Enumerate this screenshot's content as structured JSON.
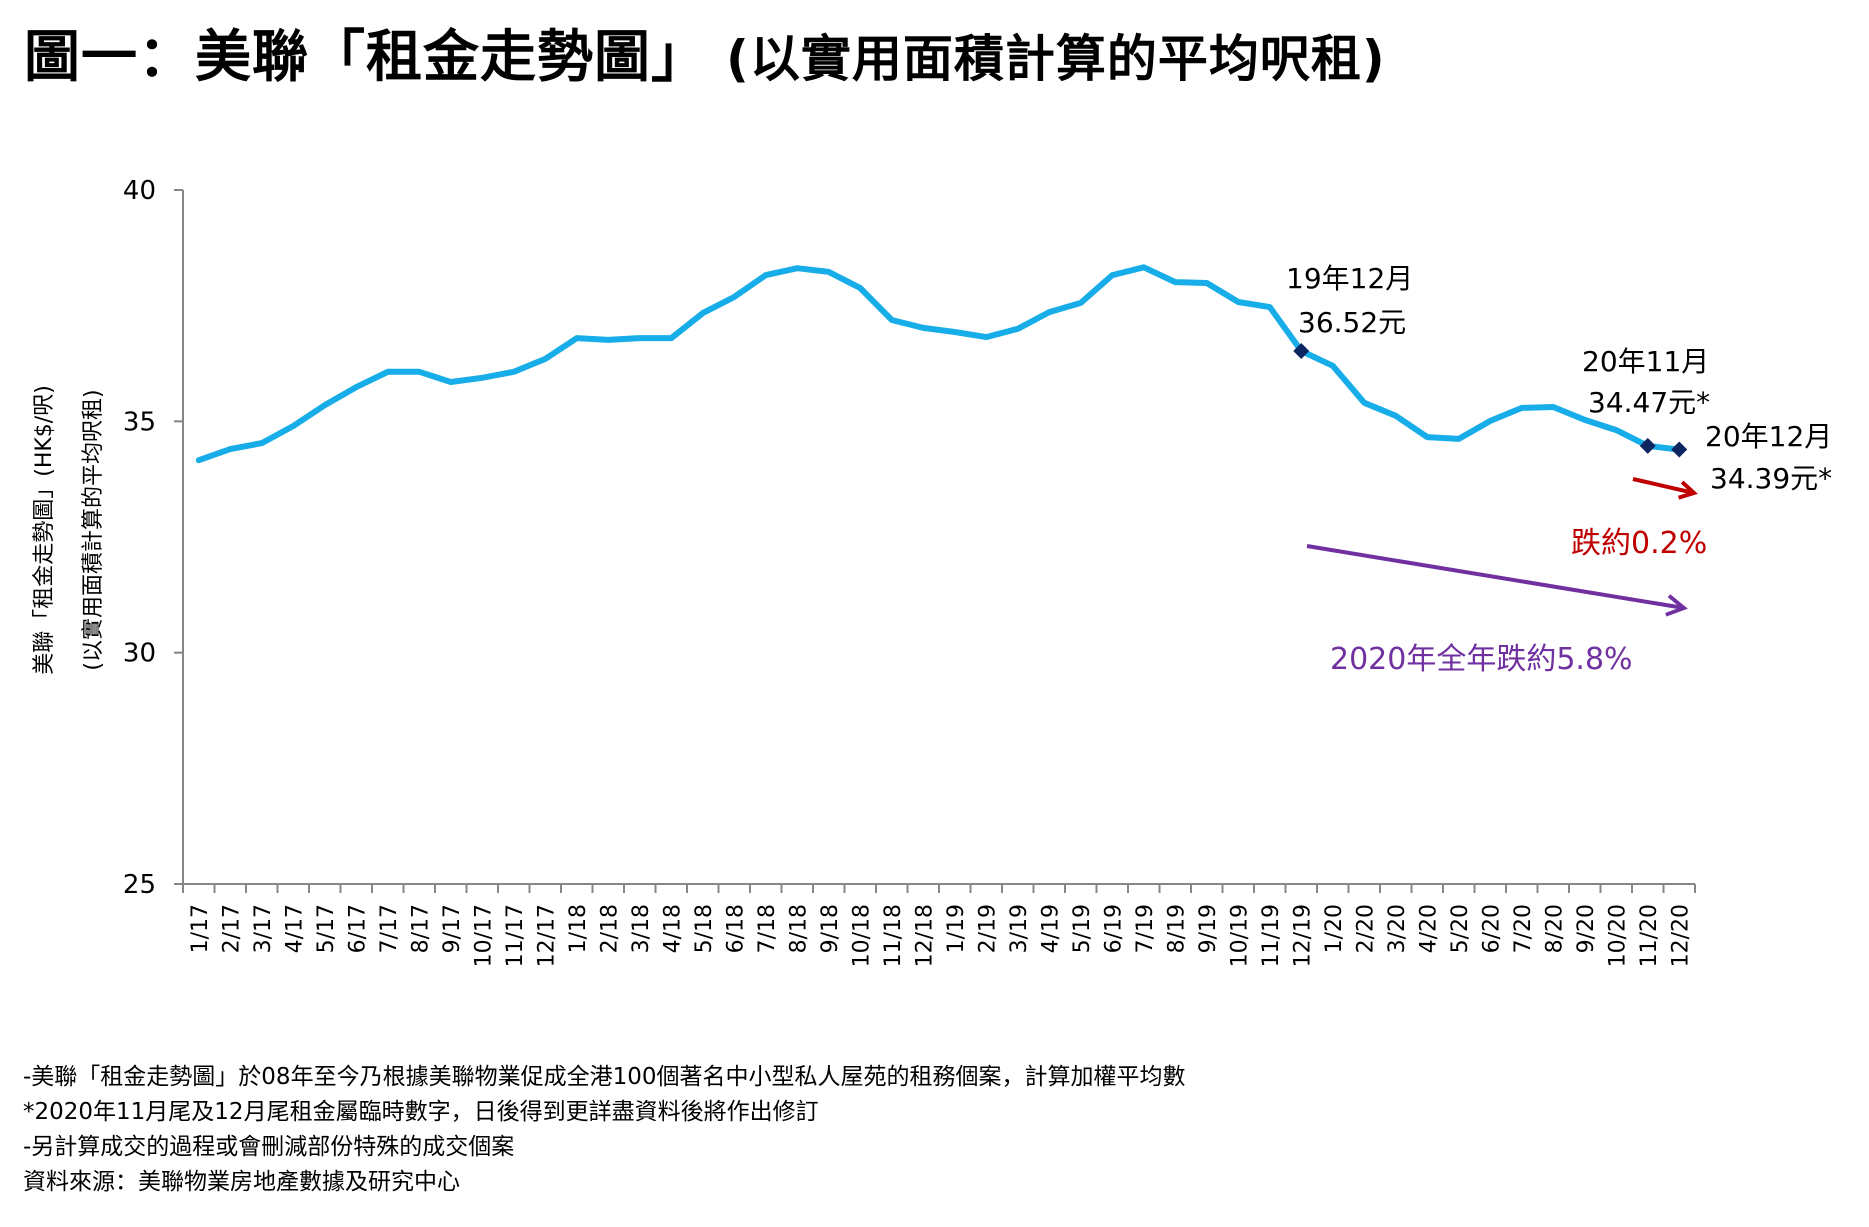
{
  "title": {
    "main": "圖一：美聯「租金走勢圖」",
    "sub": "(以實用面積計算的平均呎租)"
  },
  "colors": {
    "line": "#17ADE8",
    "marker": "#0D2561",
    "axis": "#868686",
    "red": "#C00000",
    "purple": "#7030A0"
  },
  "chart_data": {
    "type": "line",
    "title": "圖一：美聯「租金走勢圖」(以實用面積計算的平均呎租)",
    "xlabel": "",
    "ylabel": "美聯「租金走勢圖」(HK$/呎)",
    "ylabel2": "(以實用面積計算的平均呎租)",
    "ylim": [
      25,
      40
    ],
    "yticks": [
      40,
      35,
      30,
      25
    ],
    "grid": false,
    "categories": [
      "1/17",
      "2/17",
      "3/17",
      "4/17",
      "5/17",
      "6/17",
      "7/17",
      "8/17",
      "9/17",
      "10/17",
      "11/17",
      "12/17",
      "1/18",
      "2/18",
      "3/18",
      "4/18",
      "5/18",
      "6/18",
      "7/18",
      "8/18",
      "9/18",
      "10/18",
      "11/18",
      "12/18",
      "1/19",
      "2/19",
      "3/19",
      "4/19",
      "5/19",
      "6/19",
      "7/19",
      "8/19",
      "9/19",
      "10/19",
      "11/19",
      "12/19",
      "1/20",
      "2/20",
      "3/20",
      "4/20",
      "5/20",
      "6/20",
      "7/20",
      "8/20",
      "9/20",
      "10/20",
      "11/20",
      "12/20"
    ],
    "series": [
      {
        "name": "美聯「租金走勢圖」",
        "values": [
          34.16,
          34.4,
          34.53,
          34.9,
          35.35,
          35.74,
          36.07,
          36.07,
          35.85,
          35.94,
          36.07,
          36.35,
          36.8,
          36.76,
          36.8,
          36.8,
          37.34,
          37.69,
          38.16,
          38.31,
          38.23,
          37.88,
          37.19,
          37.02,
          36.93,
          36.82,
          37.0,
          37.36,
          37.56,
          38.16,
          38.33,
          38.01,
          37.99,
          37.58,
          37.47,
          36.52,
          36.2,
          35.4,
          35.12,
          34.66,
          34.62,
          35.01,
          35.29,
          35.31,
          35.03,
          34.81,
          34.47,
          34.39
        ]
      }
    ],
    "markers": [
      35,
      46,
      47
    ],
    "annotations": [
      {
        "point": 35,
        "line1": "19年12月",
        "line2": "36.52元"
      },
      {
        "point": 46,
        "line1": "20年11月",
        "line2": "34.47元*"
      },
      {
        "point": 47,
        "line1": "20年12月",
        "line2": "34.39元*"
      }
    ],
    "callouts": [
      {
        "text": "跌約0.2%",
        "color": "red"
      },
      {
        "text": "2020年全年跌約5.8%",
        "color": "purple"
      }
    ]
  },
  "footnotes": [
    "-美聯「租金走勢圖」於08年至今乃根據美聯物業促成全港100個著名中小型私人屋苑的租務個案，計算加權平均數",
    "*2020年11月尾及12月尾租金屬臨時數字，日後得到更詳盡資料後將作出修訂",
    "-另計算成交的過程或會刪減部份特殊的成交個案",
    "資料來源：美聯物業房地產數據及研究中心"
  ]
}
